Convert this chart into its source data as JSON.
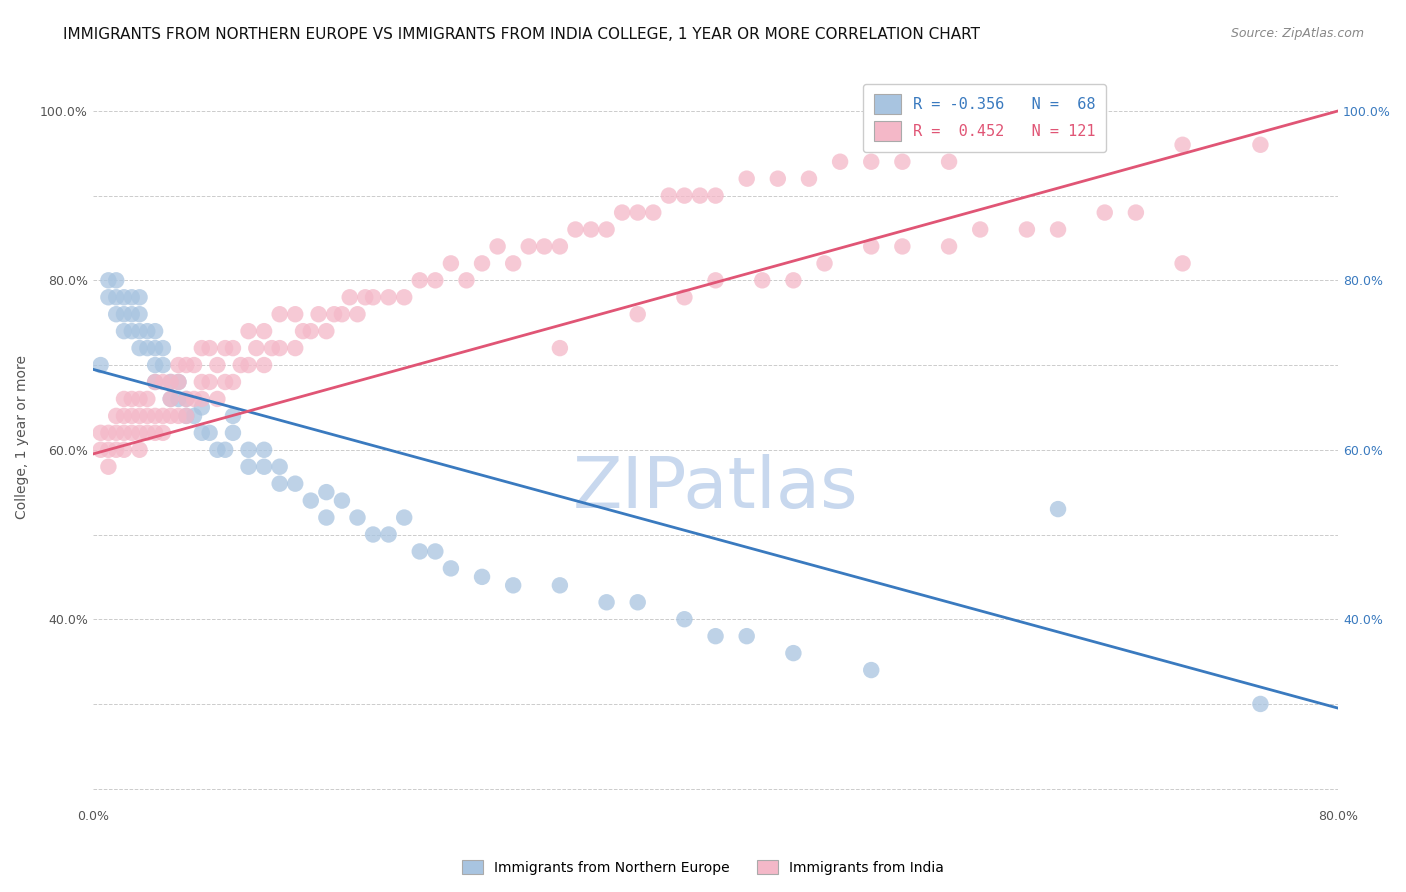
{
  "title": "IMMIGRANTS FROM NORTHERN EUROPE VS IMMIGRANTS FROM INDIA COLLEGE, 1 YEAR OR MORE CORRELATION CHART",
  "source": "Source: ZipAtlas.com",
  "ylabel": "College, 1 year or more",
  "xlim": [
    0.0,
    0.8
  ],
  "ylim": [
    0.18,
    1.05
  ],
  "blue_R": -0.356,
  "blue_N": 68,
  "pink_R": 0.452,
  "pink_N": 121,
  "blue_color": "#a8c4e0",
  "pink_color": "#f4b8c8",
  "blue_line_color": "#3a7abf",
  "pink_line_color": "#e05575",
  "legend1": "Immigrants from Northern Europe",
  "legend2": "Immigrants from India",
  "watermark": "ZIPatlas",
  "blue_line_x0": 0.0,
  "blue_line_x1": 0.8,
  "blue_line_y0": 0.695,
  "blue_line_y1": 0.295,
  "pink_line_x0": 0.0,
  "pink_line_x1": 0.8,
  "pink_line_y0": 0.595,
  "pink_line_y1": 1.0,
  "blue_scatter_x": [
    0.005,
    0.01,
    0.01,
    0.015,
    0.015,
    0.015,
    0.02,
    0.02,
    0.02,
    0.025,
    0.025,
    0.025,
    0.03,
    0.03,
    0.03,
    0.03,
    0.035,
    0.035,
    0.04,
    0.04,
    0.04,
    0.04,
    0.045,
    0.045,
    0.05,
    0.05,
    0.055,
    0.055,
    0.06,
    0.06,
    0.065,
    0.07,
    0.07,
    0.075,
    0.08,
    0.085,
    0.09,
    0.09,
    0.1,
    0.1,
    0.11,
    0.11,
    0.12,
    0.12,
    0.13,
    0.14,
    0.15,
    0.15,
    0.16,
    0.17,
    0.18,
    0.19,
    0.2,
    0.21,
    0.22,
    0.23,
    0.25,
    0.27,
    0.3,
    0.33,
    0.35,
    0.38,
    0.4,
    0.42,
    0.45,
    0.5,
    0.62,
    0.75
  ],
  "blue_scatter_y": [
    0.7,
    0.78,
    0.8,
    0.76,
    0.78,
    0.8,
    0.74,
    0.76,
    0.78,
    0.74,
    0.76,
    0.78,
    0.72,
    0.74,
    0.76,
    0.78,
    0.72,
    0.74,
    0.68,
    0.7,
    0.72,
    0.74,
    0.7,
    0.72,
    0.66,
    0.68,
    0.66,
    0.68,
    0.64,
    0.66,
    0.64,
    0.62,
    0.65,
    0.62,
    0.6,
    0.6,
    0.62,
    0.64,
    0.58,
    0.6,
    0.58,
    0.6,
    0.56,
    0.58,
    0.56,
    0.54,
    0.52,
    0.55,
    0.54,
    0.52,
    0.5,
    0.5,
    0.52,
    0.48,
    0.48,
    0.46,
    0.45,
    0.44,
    0.44,
    0.42,
    0.42,
    0.4,
    0.38,
    0.38,
    0.36,
    0.34,
    0.53,
    0.3
  ],
  "pink_scatter_x": [
    0.005,
    0.005,
    0.01,
    0.01,
    0.01,
    0.015,
    0.015,
    0.015,
    0.02,
    0.02,
    0.02,
    0.02,
    0.025,
    0.025,
    0.025,
    0.03,
    0.03,
    0.03,
    0.03,
    0.035,
    0.035,
    0.035,
    0.04,
    0.04,
    0.04,
    0.045,
    0.045,
    0.045,
    0.05,
    0.05,
    0.05,
    0.055,
    0.055,
    0.055,
    0.06,
    0.06,
    0.06,
    0.065,
    0.065,
    0.07,
    0.07,
    0.07,
    0.075,
    0.075,
    0.08,
    0.08,
    0.085,
    0.085,
    0.09,
    0.09,
    0.095,
    0.1,
    0.1,
    0.105,
    0.11,
    0.11,
    0.115,
    0.12,
    0.12,
    0.13,
    0.13,
    0.135,
    0.14,
    0.145,
    0.15,
    0.155,
    0.16,
    0.165,
    0.17,
    0.175,
    0.18,
    0.19,
    0.2,
    0.21,
    0.22,
    0.23,
    0.24,
    0.25,
    0.26,
    0.27,
    0.28,
    0.29,
    0.3,
    0.31,
    0.32,
    0.33,
    0.34,
    0.35,
    0.36,
    0.37,
    0.38,
    0.39,
    0.4,
    0.42,
    0.44,
    0.46,
    0.48,
    0.5,
    0.52,
    0.55,
    0.57,
    0.6,
    0.64,
    0.7,
    0.75,
    0.3,
    0.35,
    0.38,
    0.4,
    0.43,
    0.45,
    0.47,
    0.5,
    0.52,
    0.55,
    0.57,
    0.6,
    0.62,
    0.65,
    0.67,
    0.7
  ],
  "pink_scatter_y": [
    0.6,
    0.62,
    0.58,
    0.6,
    0.62,
    0.6,
    0.62,
    0.64,
    0.6,
    0.62,
    0.64,
    0.66,
    0.62,
    0.64,
    0.66,
    0.6,
    0.62,
    0.64,
    0.66,
    0.62,
    0.64,
    0.66,
    0.62,
    0.64,
    0.68,
    0.62,
    0.64,
    0.68,
    0.64,
    0.66,
    0.68,
    0.64,
    0.68,
    0.7,
    0.64,
    0.66,
    0.7,
    0.66,
    0.7,
    0.66,
    0.68,
    0.72,
    0.68,
    0.72,
    0.66,
    0.7,
    0.68,
    0.72,
    0.68,
    0.72,
    0.7,
    0.7,
    0.74,
    0.72,
    0.7,
    0.74,
    0.72,
    0.72,
    0.76,
    0.72,
    0.76,
    0.74,
    0.74,
    0.76,
    0.74,
    0.76,
    0.76,
    0.78,
    0.76,
    0.78,
    0.78,
    0.78,
    0.78,
    0.8,
    0.8,
    0.82,
    0.8,
    0.82,
    0.84,
    0.82,
    0.84,
    0.84,
    0.84,
    0.86,
    0.86,
    0.86,
    0.88,
    0.88,
    0.88,
    0.9,
    0.9,
    0.9,
    0.9,
    0.92,
    0.92,
    0.92,
    0.94,
    0.94,
    0.94,
    0.94,
    0.96,
    0.96,
    0.96,
    0.96,
    0.96,
    0.72,
    0.76,
    0.78,
    0.8,
    0.8,
    0.8,
    0.82,
    0.84,
    0.84,
    0.84,
    0.86,
    0.86,
    0.86,
    0.88,
    0.88,
    0.82
  ],
  "title_fontsize": 11,
  "axis_label_fontsize": 10,
  "tick_fontsize": 9,
  "source_fontsize": 9,
  "background_color": "#ffffff",
  "grid_color": "#cccccc",
  "watermark_color": "#c8d8ee",
  "watermark_fontsize": 52
}
